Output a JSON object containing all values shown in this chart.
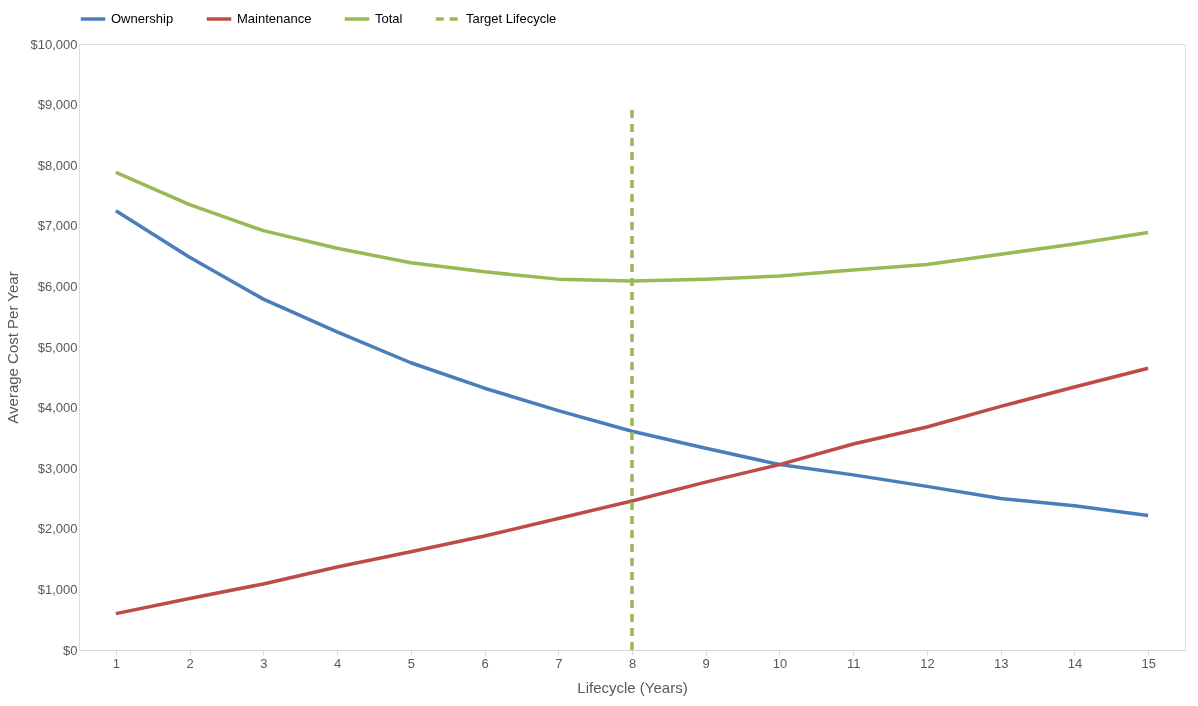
{
  "chart_data": {
    "type": "line",
    "xlabel": "Lifecycle (Years)",
    "ylabel": "Average Cost Per Year",
    "x": [
      1,
      2,
      3,
      4,
      5,
      6,
      7,
      8,
      9,
      10,
      11,
      12,
      13,
      14,
      15
    ],
    "series": [
      {
        "name": "Ownership",
        "color": "#4a7ebb",
        "values": [
          7250,
          6480,
          5790,
          5250,
          4740,
          4320,
          3950,
          3610,
          3330,
          3060,
          2890,
          2700,
          2500,
          2380,
          2220
        ]
      },
      {
        "name": "Maintenance",
        "color": "#be4b48",
        "values": [
          600,
          850,
          1090,
          1370,
          1620,
          1880,
          2170,
          2460,
          2770,
          3060,
          3400,
          3680,
          4020,
          4340,
          4650
        ]
      },
      {
        "name": "Total",
        "color": "#98b954",
        "values": [
          7880,
          7350,
          6920,
          6630,
          6390,
          6240,
          6120,
          6090,
          6120,
          6170,
          6270,
          6360,
          6530,
          6700,
          6890
        ]
      },
      {
        "name": "Target Lifecycle",
        "color": "#98b954",
        "line_style": "dashed",
        "x": [
          8,
          8
        ],
        "values": [
          0,
          9000
        ]
      }
    ],
    "xlim": [
      0.5,
      15.5
    ],
    "xticks": [
      1,
      2,
      3,
      4,
      5,
      6,
      7,
      8,
      9,
      10,
      11,
      12,
      13,
      14,
      15
    ],
    "ylim": [
      0,
      10000
    ],
    "yticks": [
      {
        "value": 0,
        "label": "$0"
      },
      {
        "value": 1000,
        "label": "$1,000"
      },
      {
        "value": 2000,
        "label": "$2,000"
      },
      {
        "value": 3000,
        "label": "$3,000"
      },
      {
        "value": 4000,
        "label": "$4,000"
      },
      {
        "value": 5000,
        "label": "$5,000"
      },
      {
        "value": 6000,
        "label": "$6,000"
      },
      {
        "value": 7000,
        "label": "$7,000"
      },
      {
        "value": 8000,
        "label": "$8,000"
      },
      {
        "value": 9000,
        "label": "$9,000"
      },
      {
        "value": 10000,
        "label": "$10,000"
      }
    ],
    "grid": false,
    "legend": "top",
    "marker": "none",
    "line_style": "solid"
  }
}
